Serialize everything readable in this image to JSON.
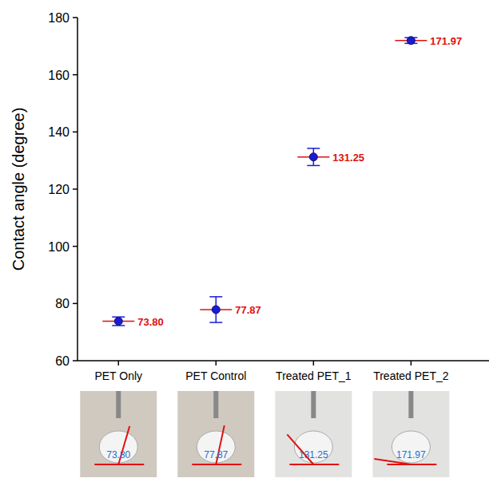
{
  "chart_data": {
    "type": "scatter",
    "y_label": "Contact angle (degree)",
    "categories": [
      "PET Only",
      "PET Control",
      "Treated PET_1",
      "Treated PET_2"
    ],
    "values": [
      73.8,
      77.87,
      131.25,
      171.97
    ],
    "value_labels": [
      "73.80",
      "77.87",
      "131.25",
      "171.97"
    ],
    "errors": [
      1.5,
      4.5,
      3.0,
      1.0
    ],
    "color": "#1a1ad6",
    "marker": "circle",
    "data_labels": true,
    "grid": false,
    "ylim": [
      60,
      180
    ],
    "yticks": [
      60,
      80,
      100,
      120,
      140,
      160,
      180
    ]
  }
}
